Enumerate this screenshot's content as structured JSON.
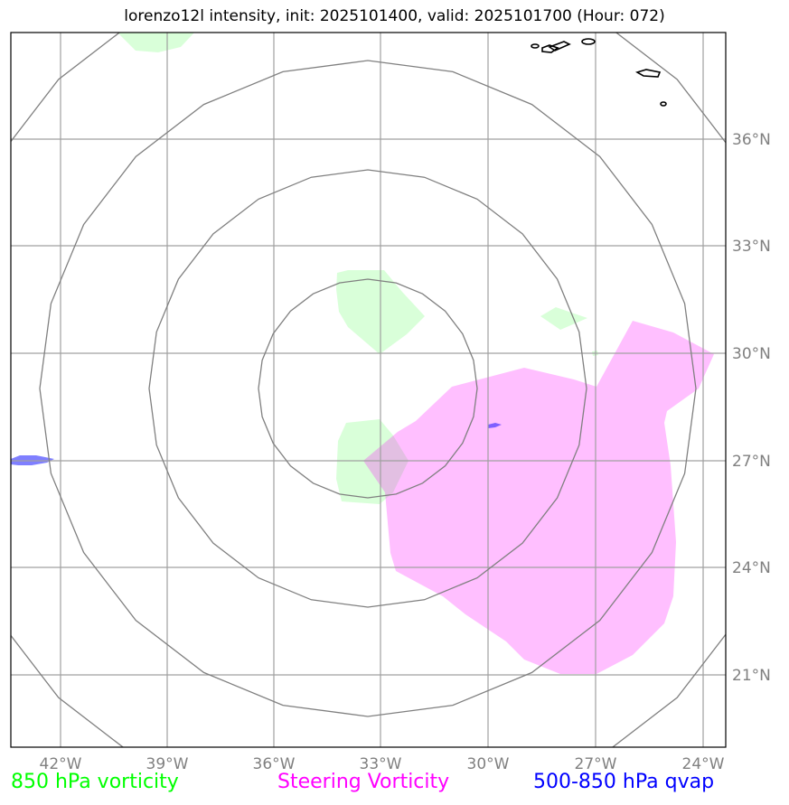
{
  "title": "lorenzo12l intensity, init: 2025101400, valid: 2025101700 (Hour: 072)",
  "map": {
    "lon_ticks": [
      "42°W",
      "39°W",
      "36°W",
      "33°W",
      "30°W",
      "27°W",
      "24°W"
    ],
    "lat_ticks": [
      "36°N",
      "33°N",
      "30°N",
      "27°N",
      "24°N",
      "21°N"
    ],
    "range_rings": 4,
    "colors": {
      "vorticity_850": "#00ff00",
      "steering_vorticity": "#ff00ff",
      "qvap": "#0000ff",
      "grid": "#a0a0a0",
      "rings": "#808080"
    }
  },
  "legend": {
    "vorticity_850": "850 hPa vorticity",
    "steering_vorticity": "Steering Vorticity",
    "qvap": "500-850 hPa qvap"
  }
}
